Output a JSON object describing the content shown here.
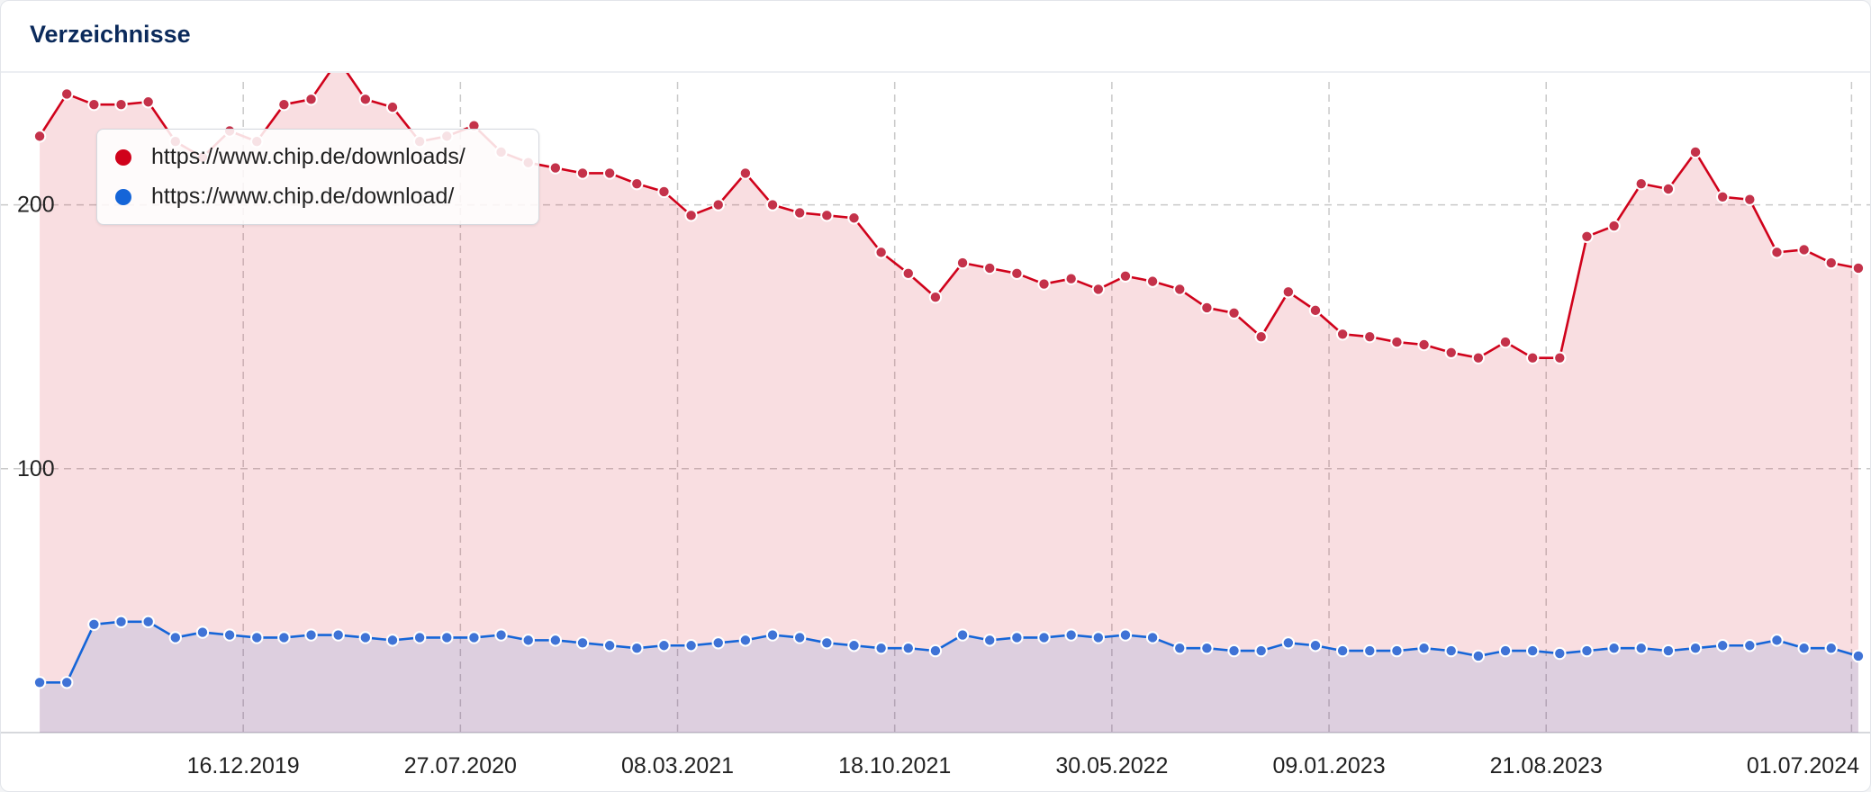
{
  "panel": {
    "title": "Verzeichnisse"
  },
  "legend": {
    "downloads": "https://www.chip.de/downloads/",
    "download": "https://www.chip.de/download/"
  },
  "colors": {
    "downloads": "#d0021b",
    "download": "#1565d8",
    "grid": "#c9c9c9"
  },
  "chart_data": {
    "type": "line",
    "title": "",
    "xlabel": "",
    "ylabel": "",
    "ylim": [
      0,
      250
    ],
    "yticks": [
      100,
      200
    ],
    "xticks": [
      "16.12.2019",
      "27.07.2020",
      "08.03.2021",
      "18.10.2021",
      "30.05.2022",
      "09.01.2023",
      "21.08.2023",
      "01.07.2024"
    ],
    "grid": true,
    "legend_position": "top-left",
    "series": [
      {
        "name": "https://www.chip.de/downloads/",
        "color": "#d0021b",
        "x": [
          "2019-05-20",
          "2019-06-17",
          "2019-07-15",
          "2019-08-12",
          "2019-09-09",
          "2019-10-07",
          "2019-11-04",
          "2019-12-02",
          "2019-12-30",
          "2020-01-27",
          "2020-02-24",
          "2020-03-23",
          "2020-04-20",
          "2020-05-18",
          "2020-06-15",
          "2020-07-13",
          "2020-08-10",
          "2020-09-07",
          "2020-10-05",
          "2020-11-02",
          "2020-11-30",
          "2020-12-28",
          "2021-01-25",
          "2021-02-22",
          "2021-03-22",
          "2021-04-19",
          "2021-05-17",
          "2021-06-14",
          "2021-07-12",
          "2021-08-09",
          "2021-09-06",
          "2021-10-04",
          "2021-11-01",
          "2021-11-29",
          "2021-12-27",
          "2022-01-24",
          "2022-02-21",
          "2022-03-21",
          "2022-04-18",
          "2022-05-16",
          "2022-06-13",
          "2022-07-11",
          "2022-08-08",
          "2022-09-05",
          "2022-10-03",
          "2022-10-31",
          "2022-11-28",
          "2022-12-26",
          "2023-01-23",
          "2023-02-20",
          "2023-03-20",
          "2023-04-17",
          "2023-05-15",
          "2023-06-12",
          "2023-07-10",
          "2023-08-07",
          "2023-09-04",
          "2023-10-02",
          "2023-10-30",
          "2023-11-27",
          "2023-12-25",
          "2024-01-22",
          "2024-02-19",
          "2024-03-18",
          "2024-04-15",
          "2024-05-13",
          "2024-06-10",
          "2024-07-08"
        ],
        "values": [
          226,
          242,
          238,
          238,
          239,
          224,
          218,
          228,
          224,
          238,
          240,
          255,
          240,
          237,
          224,
          226,
          230,
          220,
          216,
          214,
          212,
          212,
          208,
          205,
          196,
          200,
          212,
          200,
          197,
          196,
          195,
          182,
          174,
          165,
          178,
          176,
          174,
          170,
          172,
          168,
          173,
          171,
          168,
          161,
          159,
          150,
          167,
          160,
          151,
          150,
          148,
          147,
          144,
          142,
          148,
          142,
          142,
          188,
          192,
          208,
          206,
          220,
          203,
          202,
          182,
          183,
          178,
          176
        ]
      },
      {
        "name": "https://www.chip.de/download/",
        "color": "#1565d8",
        "x": [
          "2019-05-20",
          "2019-06-17",
          "2019-07-15",
          "2019-08-12",
          "2019-09-09",
          "2019-10-07",
          "2019-11-04",
          "2019-12-02",
          "2019-12-30",
          "2020-01-27",
          "2020-02-24",
          "2020-03-23",
          "2020-04-20",
          "2020-05-18",
          "2020-06-15",
          "2020-07-13",
          "2020-08-10",
          "2020-09-07",
          "2020-10-05",
          "2020-11-02",
          "2020-11-30",
          "2020-12-28",
          "2021-01-25",
          "2021-02-22",
          "2021-03-22",
          "2021-04-19",
          "2021-05-17",
          "2021-06-14",
          "2021-07-12",
          "2021-08-09",
          "2021-09-06",
          "2021-10-04",
          "2021-11-01",
          "2021-11-29",
          "2021-12-27",
          "2022-01-24",
          "2022-02-21",
          "2022-03-21",
          "2022-04-18",
          "2022-05-16",
          "2022-06-13",
          "2022-07-11",
          "2022-08-08",
          "2022-09-05",
          "2022-10-03",
          "2022-10-31",
          "2022-11-28",
          "2022-12-26",
          "2023-01-23",
          "2023-02-20",
          "2023-03-20",
          "2023-04-17",
          "2023-05-15",
          "2023-06-12",
          "2023-07-10",
          "2023-08-07",
          "2023-09-04",
          "2023-10-02",
          "2023-10-30",
          "2023-11-27",
          "2023-12-25",
          "2024-01-22",
          "2024-02-19",
          "2024-03-18",
          "2024-04-15",
          "2024-05-13",
          "2024-06-10",
          "2024-07-08"
        ],
        "values": [
          19,
          19,
          41,
          42,
          42,
          36,
          38,
          37,
          36,
          36,
          37,
          37,
          36,
          35,
          36,
          36,
          36,
          37,
          35,
          35,
          34,
          33,
          32,
          33,
          33,
          34,
          35,
          37,
          36,
          34,
          33,
          32,
          32,
          31,
          37,
          35,
          36,
          36,
          37,
          36,
          37,
          36,
          32,
          32,
          31,
          31,
          34,
          33,
          31,
          31,
          31,
          32,
          31,
          29,
          31,
          31,
          30,
          31,
          32,
          32,
          31,
          32,
          33,
          33,
          35,
          32,
          32,
          29
        ]
      }
    ]
  }
}
